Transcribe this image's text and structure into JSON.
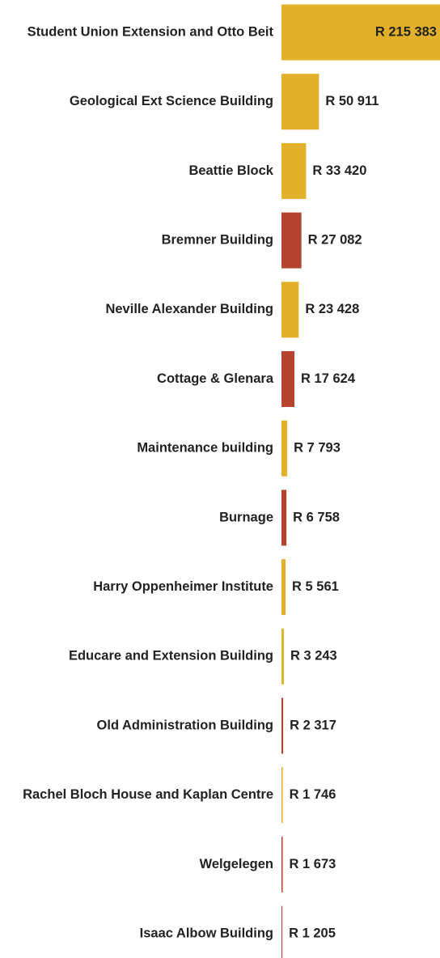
{
  "chart_data": {
    "type": "bar",
    "orientation": "horizontal",
    "categories": [
      "Student Union Extension and Otto Beit",
      "Geological Ext Science Building",
      "Beattie Block",
      "Bremner Building",
      "Neville Alexander Building",
      "Cottage & Glenara",
      "Maintenance building",
      "Burnage",
      "Harry Oppenheimer Institute",
      "Educare and Extension Building",
      "Old Administration Building",
      "Rachel Bloch House and Kaplan Centre",
      "Welgelegen",
      "Isaac Albow Building"
    ],
    "values": [
      215383,
      50911,
      33420,
      27082,
      23428,
      17624,
      7793,
      6758,
      5561,
      3243,
      2317,
      1746,
      1673,
      1205
    ],
    "value_labels": [
      "R 215 383",
      "R 50 911",
      "R 33 420",
      "R 27 082",
      "R 23 428",
      "R 17 624",
      "R 7 793",
      "R 6 758",
      "R 5 561",
      "R 3 243",
      "R 2 317",
      "R 1 746",
      "R 1 673",
      "R 1 205"
    ],
    "colors": [
      "#e3b02a",
      "#e3b02a",
      "#e3b02a",
      "#b5432e",
      "#e3b02a",
      "#b5432e",
      "#e3b02a",
      "#b5432e",
      "#e3b02a",
      "#e3b02a",
      "#b5432e",
      "#e3b02a",
      "#b5432e",
      "#b5432e"
    ]
  }
}
